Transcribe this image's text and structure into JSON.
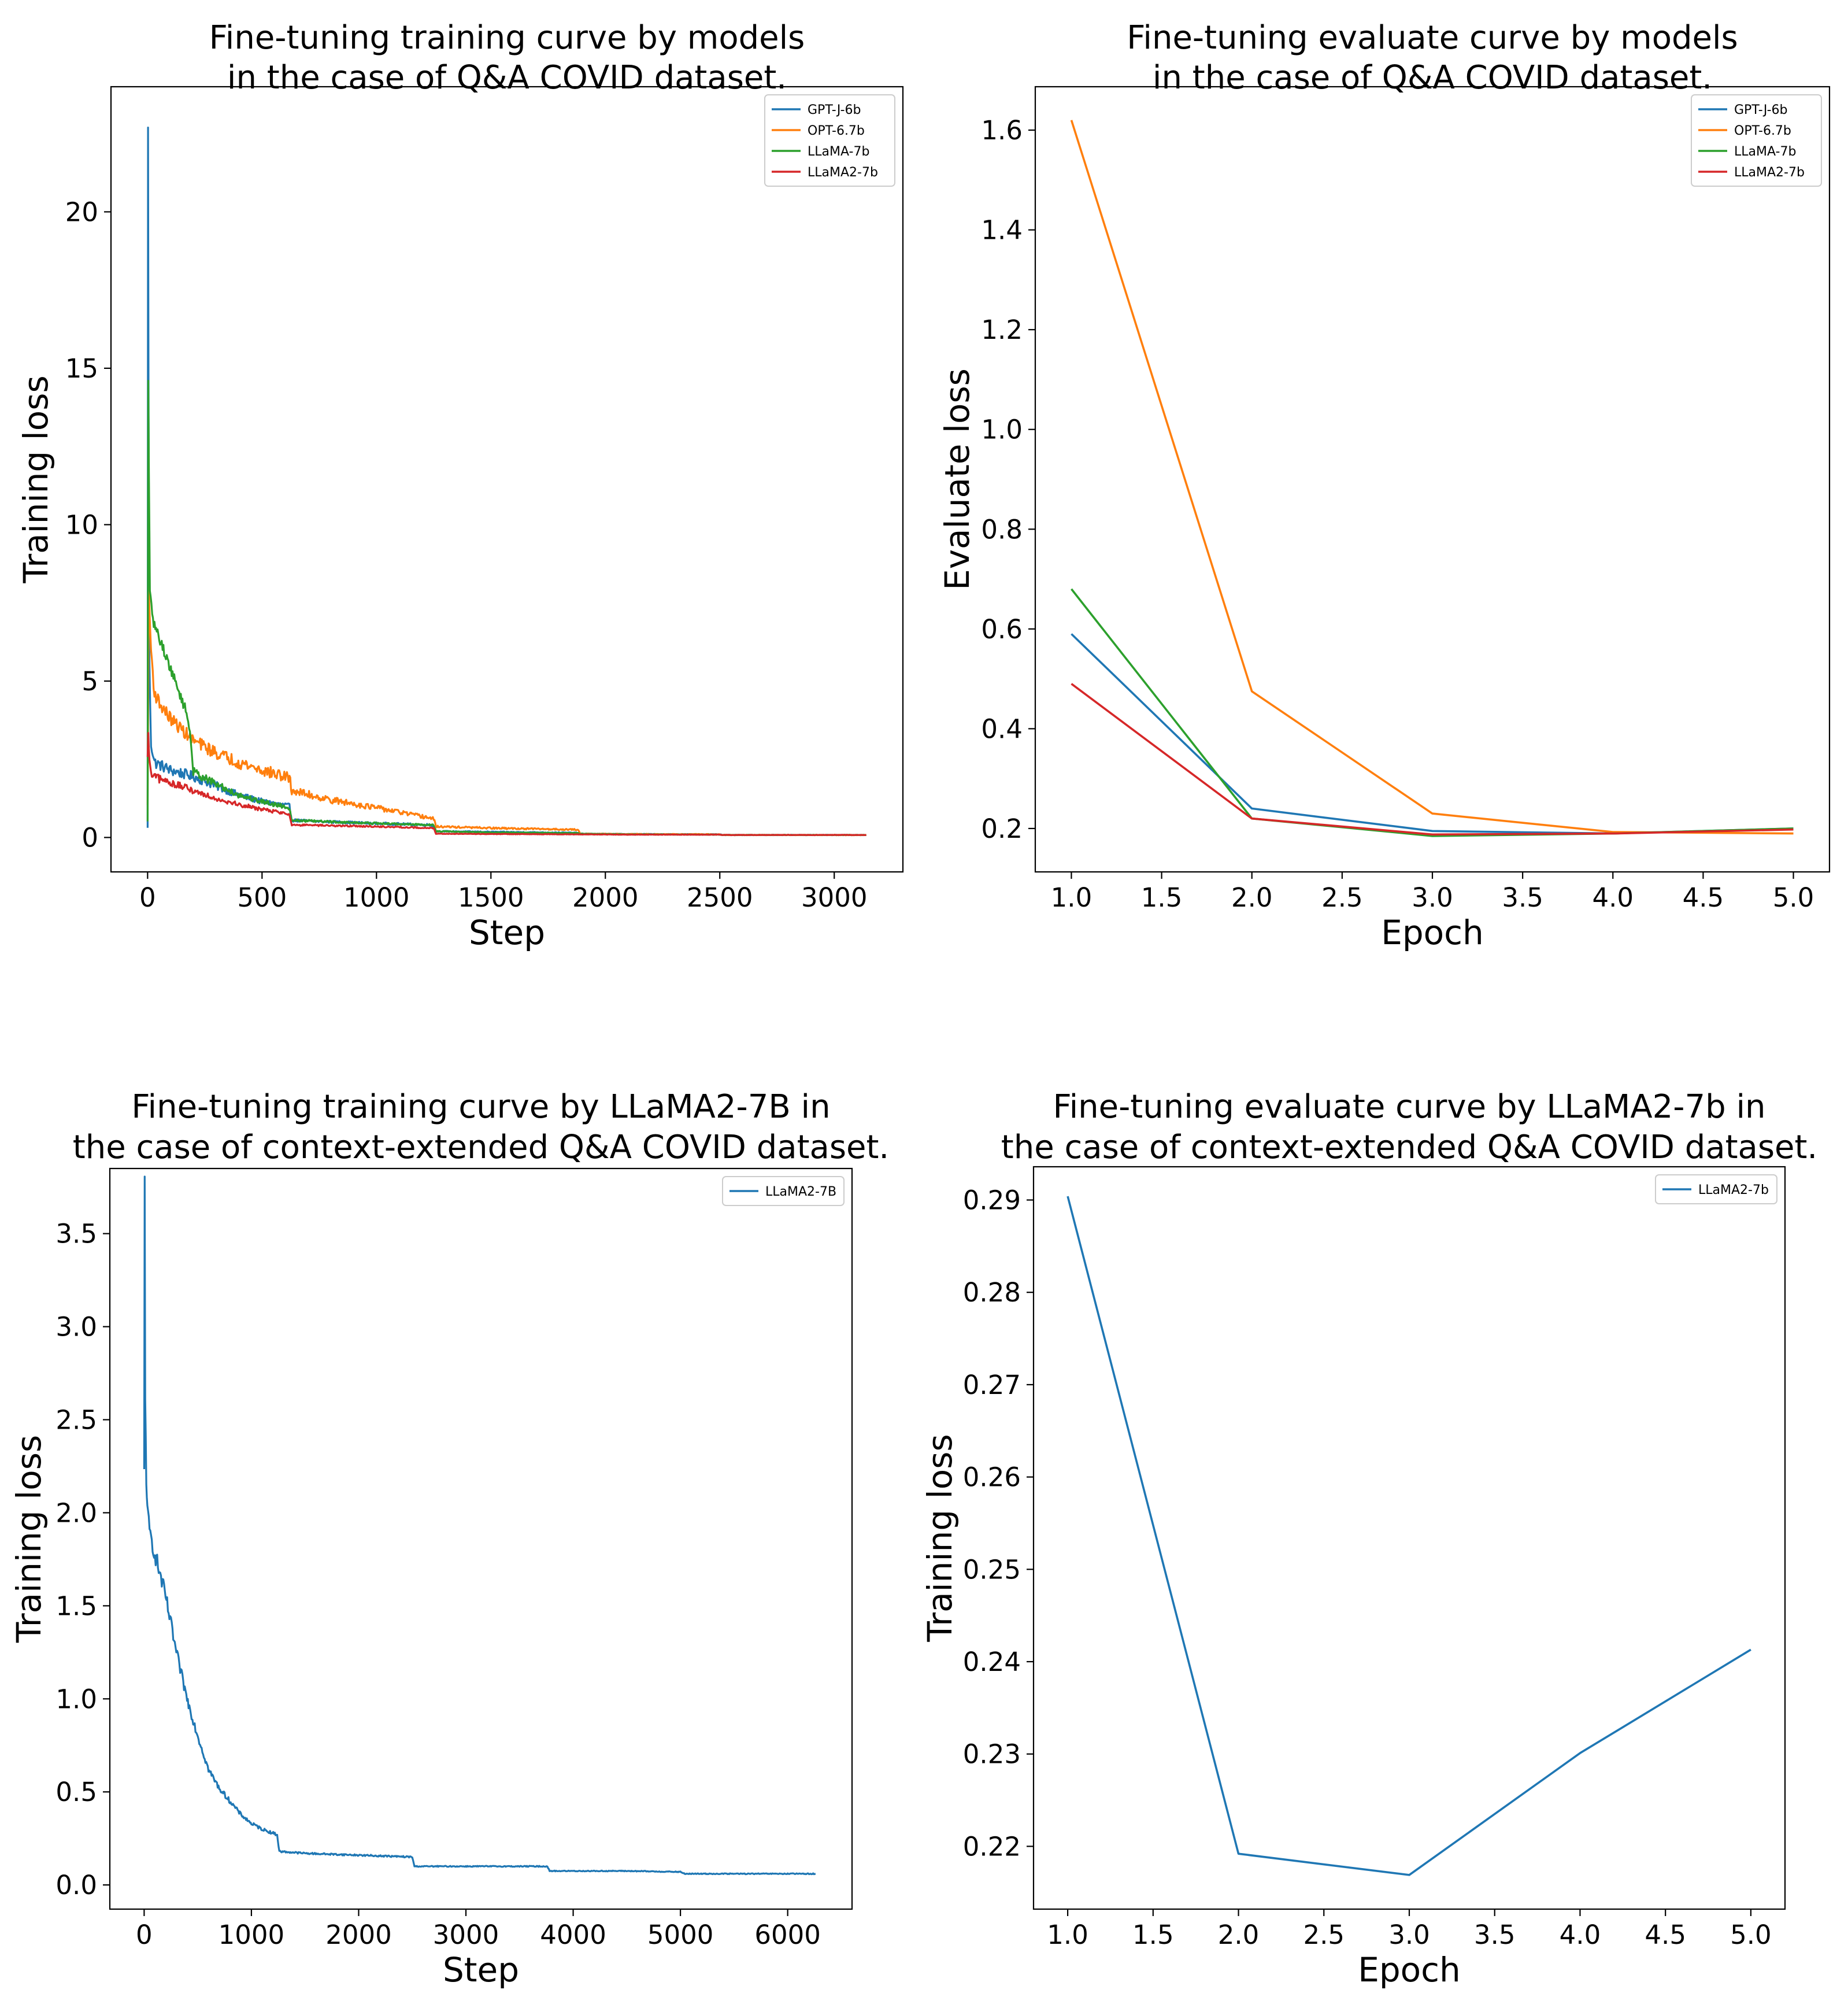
{
  "colors": {
    "GPT-J-6b": "#1f77b4",
    "OPT-6.7b": "#ff7f0e",
    "LLaMA-7b": "#2ca02c",
    "LLaMA2-7b": "#d62728",
    "single": "#1f77b4"
  },
  "chart_data": [
    {
      "type": "line",
      "title_lines": [
        "Fine-tuning training curve by models",
        "in the case of Q&A COVID dataset."
      ],
      "xlabel": "Step",
      "ylabel": "Training loss",
      "xlim": [
        -160,
        3300
      ],
      "ylim": [
        -1.1,
        24
      ],
      "xticks": [
        0,
        500,
        1000,
        1500,
        2000,
        2500,
        3000
      ],
      "xtick_labels": [
        "0",
        "500",
        "1000",
        "1500",
        "2000",
        "2500",
        "3000"
      ],
      "yticks": [
        0,
        5,
        10,
        15,
        20
      ],
      "ytick_labels": [
        "0",
        "5",
        "10",
        "15",
        "20"
      ],
      "legend_position": "top-right",
      "grid": false,
      "series": [
        {
          "name": "GPT-J-6b",
          "color_key": "GPT-J-6b",
          "noise": 0.18,
          "x": [
            0,
            2,
            4,
            8,
            15,
            30,
            60,
            100,
            200,
            300,
            400,
            500,
            620,
            630,
            800,
            1000,
            1240,
            1260,
            1500,
            1880,
            1890,
            2100,
            2500,
            2510,
            3000,
            3140
          ],
          "y": [
            0.3,
            22.8,
            14.5,
            5.5,
            3.0,
            2.4,
            2.3,
            2.15,
            1.95,
            1.65,
            1.35,
            1.15,
            1.0,
            0.55,
            0.5,
            0.45,
            0.4,
            0.2,
            0.18,
            0.15,
            0.12,
            0.11,
            0.1,
            0.08,
            0.08,
            0.08
          ]
        },
        {
          "name": "OPT-6.7b",
          "color_key": "OPT-6.7b",
          "noise": 0.2,
          "x": [
            0,
            5,
            15,
            30,
            60,
            100,
            200,
            300,
            400,
            500,
            620,
            630,
            800,
            1000,
            1250,
            1260,
            1500,
            1880,
            1890,
            2100,
            2500,
            2510,
            3000,
            3140
          ],
          "y": [
            1.0,
            7.8,
            6.0,
            4.6,
            4.2,
            3.8,
            3.1,
            2.7,
            2.4,
            2.15,
            1.9,
            1.5,
            1.2,
            0.95,
            0.6,
            0.35,
            0.3,
            0.25,
            0.12,
            0.11,
            0.1,
            0.08,
            0.08,
            0.08
          ]
        },
        {
          "name": "LLaMA-7b",
          "color_key": "LLaMA-7b",
          "noise": 0.15,
          "x": [
            0,
            3,
            6,
            10,
            20,
            40,
            80,
            120,
            170,
            185,
            200,
            300,
            400,
            500,
            620,
            630,
            800,
            1000,
            1250,
            1260,
            1500,
            1880,
            1890,
            2100,
            2500,
            2510,
            3000,
            3140
          ],
          "y": [
            0.5,
            14.5,
            11.5,
            8.0,
            7.0,
            6.6,
            5.8,
            5.0,
            4.0,
            3.4,
            2.1,
            1.7,
            1.35,
            1.15,
            0.95,
            0.55,
            0.5,
            0.45,
            0.4,
            0.2,
            0.16,
            0.14,
            0.12,
            0.1,
            0.09,
            0.08,
            0.08,
            0.08
          ]
        },
        {
          "name": "LLaMA2-7b",
          "color_key": "LLaMA2-7b",
          "noise": 0.15,
          "x": [
            0,
            3,
            8,
            15,
            40,
            100,
            200,
            300,
            400,
            500,
            620,
            630,
            800,
            1000,
            1250,
            1260,
            1500,
            1880,
            1890,
            2100,
            2500,
            2510,
            3000,
            3140
          ],
          "y": [
            2.5,
            3.3,
            2.4,
            2.0,
            1.9,
            1.75,
            1.5,
            1.25,
            1.05,
            0.9,
            0.75,
            0.4,
            0.38,
            0.35,
            0.3,
            0.12,
            0.11,
            0.1,
            0.1,
            0.09,
            0.09,
            0.08,
            0.08,
            0.08
          ]
        }
      ]
    },
    {
      "type": "line",
      "title_lines": [
        "Fine-tuning evaluate curve by models",
        "in the case of Q&A COVID dataset."
      ],
      "xlabel": "Epoch",
      "ylabel": "Evaluate loss",
      "xlim": [
        0.8,
        5.2
      ],
      "ylim": [
        0.113,
        1.687
      ],
      "xticks": [
        1.0,
        1.5,
        2.0,
        2.5,
        3.0,
        3.5,
        4.0,
        4.5,
        5.0
      ],
      "xtick_labels": [
        "1.0",
        "1.5",
        "2.0",
        "2.5",
        "3.0",
        "3.5",
        "4.0",
        "4.5",
        "5.0"
      ],
      "yticks": [
        0.2,
        0.4,
        0.6,
        0.8,
        1.0,
        1.2,
        1.4,
        1.6
      ],
      "ytick_labels": [
        "0.2",
        "0.4",
        "0.6",
        "0.8",
        "1.0",
        "1.2",
        "1.4",
        "1.6"
      ],
      "legend_position": "top-right",
      "grid": false,
      "series": [
        {
          "name": "GPT-J-6b",
          "color_key": "GPT-J-6b",
          "x": [
            1,
            2,
            3,
            4,
            5
          ],
          "y": [
            0.59,
            0.24,
            0.195,
            0.19,
            0.2
          ]
        },
        {
          "name": "OPT-6.7b",
          "color_key": "OPT-6.7b",
          "x": [
            1,
            2,
            3,
            4,
            5
          ],
          "y": [
            1.62,
            0.475,
            0.23,
            0.193,
            0.19
          ]
        },
        {
          "name": "LLaMA-7b",
          "color_key": "LLaMA-7b",
          "x": [
            1,
            2,
            3,
            4,
            5
          ],
          "y": [
            0.68,
            0.22,
            0.185,
            0.19,
            0.2
          ]
        },
        {
          "name": "LLaMA2-7b",
          "color_key": "LLaMA2-7b",
          "x": [
            1,
            2,
            3,
            4,
            5
          ],
          "y": [
            0.49,
            0.22,
            0.188,
            0.19,
            0.198
          ]
        }
      ]
    },
    {
      "type": "line",
      "title_lines": [
        "Fine-tuning training curve by LLaMA2-7B in",
        "the case of context-extended Q&A COVID dataset."
      ],
      "xlabel": "Step",
      "ylabel": "Training loss",
      "xlim": [
        -320,
        6600
      ],
      "ylim": [
        -0.13,
        3.85
      ],
      "xticks": [
        0,
        1000,
        2000,
        3000,
        4000,
        5000,
        6000
      ],
      "xtick_labels": [
        "0",
        "1000",
        "2000",
        "3000",
        "4000",
        "5000",
        "6000"
      ],
      "yticks": [
        0.0,
        0.5,
        1.0,
        1.5,
        2.0,
        2.5,
        3.0,
        3.5
      ],
      "ytick_labels": [
        "0.0",
        "0.5",
        "1.0",
        "1.5",
        "2.0",
        "2.5",
        "3.0",
        "3.5"
      ],
      "legend_position": "top-right",
      "grid": false,
      "series": [
        {
          "name": "LLaMA2-7B",
          "color_key": "single",
          "noise": 0.06,
          "x": [
            0,
            5,
            10,
            20,
            30,
            50,
            100,
            200,
            300,
            400,
            500,
            600,
            700,
            800,
            900,
            1000,
            1100,
            1240,
            1260,
            1500,
            2000,
            2500,
            2520,
            3000,
            3500,
            3760,
            3780,
            4500,
            5000,
            5040,
            5500,
            6000,
            6260
          ],
          "y": [
            2.2,
            3.77,
            2.6,
            2.2,
            2.0,
            1.9,
            1.78,
            1.55,
            1.25,
            1.0,
            0.8,
            0.62,
            0.52,
            0.45,
            0.38,
            0.33,
            0.3,
            0.27,
            0.18,
            0.17,
            0.16,
            0.15,
            0.1,
            0.1,
            0.1,
            0.1,
            0.075,
            0.075,
            0.07,
            0.06,
            0.06,
            0.06,
            0.06
          ]
        }
      ]
    },
    {
      "type": "line",
      "title_lines": [
        "Fine-tuning evaluate curve by LLaMA2-7b in",
        "the case of context-extended Q&A COVID dataset."
      ],
      "xlabel": "Epoch",
      "ylabel": "Training loss",
      "xlim": [
        0.8,
        5.2
      ],
      "ylim": [
        0.2132,
        0.2936
      ],
      "xticks": [
        1.0,
        1.5,
        2.0,
        2.5,
        3.0,
        3.5,
        4.0,
        4.5,
        5.0
      ],
      "xtick_labels": [
        "1.0",
        "1.5",
        "2.0",
        "2.5",
        "3.0",
        "3.5",
        "4.0",
        "4.5",
        "5.0"
      ],
      "yticks": [
        0.22,
        0.23,
        0.24,
        0.25,
        0.26,
        0.27,
        0.28,
        0.29
      ],
      "ytick_labels": [
        "0.22",
        "0.23",
        "0.24",
        "0.25",
        "0.26",
        "0.27",
        "0.28",
        "0.29"
      ],
      "legend_position": "top-right",
      "grid": false,
      "series": [
        {
          "name": "LLaMA2-7b",
          "color_key": "single",
          "x": [
            1,
            2,
            3,
            4,
            5
          ],
          "y": [
            0.2904,
            0.2192,
            0.2169,
            0.2301,
            0.2413
          ]
        }
      ]
    }
  ]
}
